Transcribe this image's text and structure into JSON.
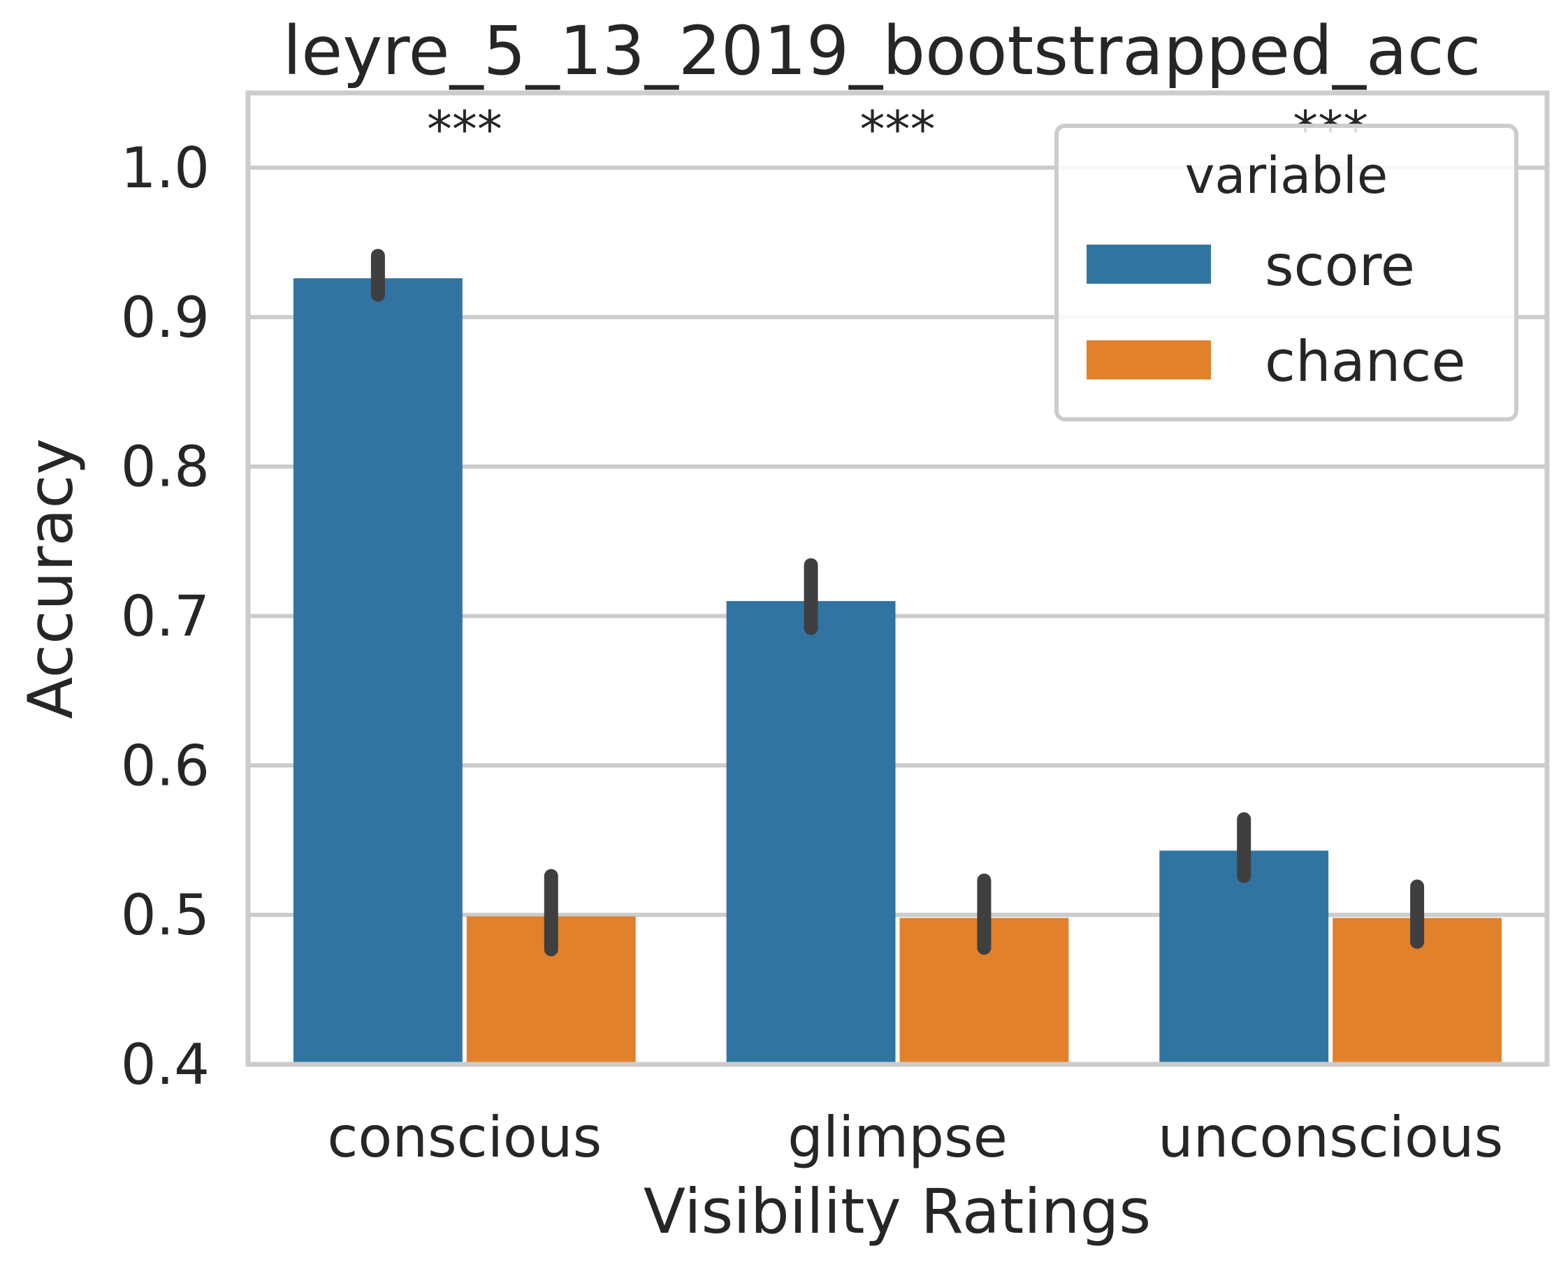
{
  "chart_data": {
    "type": "bar",
    "title": "leyre_5_13_2019_bootstrapped_acc",
    "xlabel": "Visibility Ratings",
    "ylabel": "Accuracy",
    "categories": [
      "conscious",
      "glimpse",
      "unconscious"
    ],
    "ylim": [
      0.4,
      1.05
    ],
    "yticks": [
      "0.4",
      "0.5",
      "0.6",
      "0.7",
      "0.8",
      "0.9",
      "1.0"
    ],
    "grid": true,
    "legend": {
      "title": "variable",
      "placement": "upper right"
    },
    "series": [
      {
        "name": "score",
        "color": "#3274a1",
        "values": [
          0.926,
          0.71,
          0.543
        ],
        "ci": [
          [
            0.915,
            0.941
          ],
          [
            0.692,
            0.734
          ],
          [
            0.526,
            0.564
          ]
        ]
      },
      {
        "name": "chance",
        "color": "#e1812c",
        "values": [
          0.499,
          0.498,
          0.498
        ],
        "ci": [
          [
            0.477,
            0.526
          ],
          [
            0.478,
            0.523
          ],
          [
            0.482,
            0.519
          ]
        ]
      }
    ],
    "annotations": [
      "***",
      "***",
      "***"
    ],
    "error_bar_color": "#3f3f3f"
  }
}
